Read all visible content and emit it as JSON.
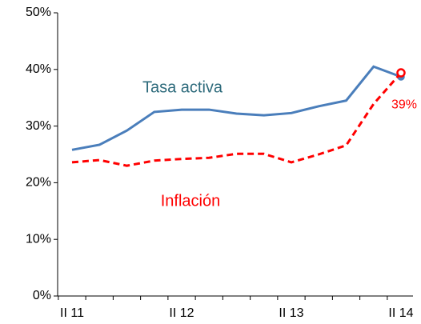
{
  "chart_data": {
    "type": "line",
    "categories": [
      "II 11",
      null,
      null,
      null,
      "II 12",
      null,
      null,
      null,
      "II 13",
      null,
      null,
      null,
      "II 14"
    ],
    "series": [
      {
        "name": "Tasa activa",
        "color": "#4a7ebb",
        "style": "solid",
        "values": [
          25.8,
          26.7,
          29.2,
          32.5,
          32.9,
          32.9,
          32.2,
          31.9,
          32.3,
          33.5,
          34.5,
          40.5,
          38.7
        ]
      },
      {
        "name": "Inflación",
        "color": "#ff0000",
        "style": "dashed",
        "values": [
          23.6,
          24.0,
          23.0,
          23.9,
          24.2,
          24.4,
          25.1,
          25.1,
          23.6,
          25.0,
          26.6,
          33.9,
          39.4
        ],
        "value_labels": [
          null,
          null,
          null,
          null,
          null,
          null,
          null,
          null,
          null,
          null,
          null,
          null,
          "39%"
        ]
      }
    ],
    "ylim": [
      0,
      50
    ],
    "yticks": [
      {
        "value": 0,
        "label": "0%"
      },
      {
        "value": 10,
        "label": "10%"
      },
      {
        "value": 20,
        "label": "20%"
      },
      {
        "value": 30,
        "label": "30%"
      },
      {
        "value": 40,
        "label": "40%"
      },
      {
        "value": 50,
        "label": "50%"
      }
    ]
  }
}
